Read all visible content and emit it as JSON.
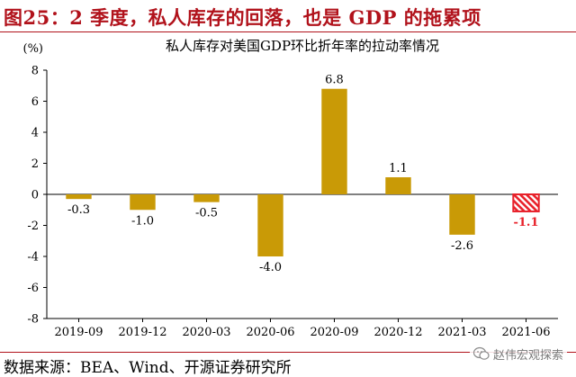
{
  "figure": {
    "title": "图25：2 季度，私人库存的回落，也是 GDP 的拖累项",
    "source": "数据来源：BEA、Wind、开源证券研究所",
    "watermark": "赵伟宏观探索"
  },
  "colors": {
    "title_red": "#b1121b",
    "bar": "#c99a06",
    "forecast_bar": "#e8212a",
    "forecast_label": "#e8212a",
    "axis": "#000000"
  },
  "chart_data": {
    "type": "bar",
    "title": "私人库存对美国GDP环比折年率的拉动率情况",
    "ylabel": "(%)",
    "xlabel": "",
    "categories": [
      "2019-09",
      "2019-12",
      "2020-03",
      "2020-06",
      "2020-09",
      "2020-12",
      "2021-03",
      "2021-06"
    ],
    "values": [
      -0.3,
      -1.0,
      -0.5,
      -4.0,
      6.8,
      1.1,
      -2.6,
      -1.1
    ],
    "data_labels": [
      "-0.3",
      "-1.0",
      "-0.5",
      "-4.0",
      "6.8",
      "1.1",
      "-2.6",
      "-1.1"
    ],
    "highlighted_category": "2021-06",
    "ylim": [
      -8,
      8
    ],
    "yticks": [
      -8,
      -6,
      -4,
      -2,
      0,
      2,
      4,
      6,
      8
    ],
    "grid": false,
    "legend": "none"
  }
}
